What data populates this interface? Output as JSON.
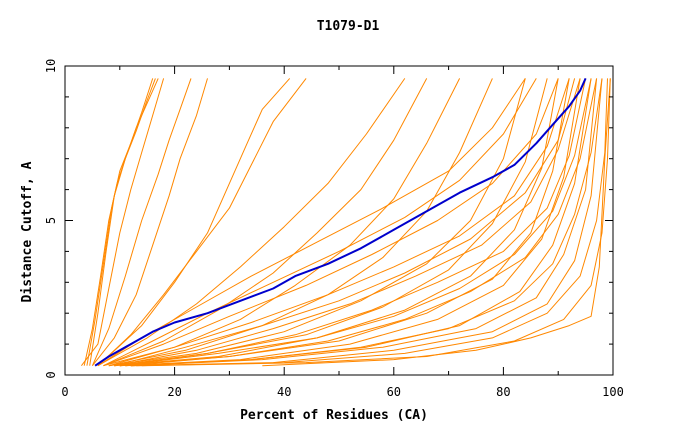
{
  "chart_data": {
    "type": "line",
    "title": "T1079-D1",
    "xlabel": "Percent of Residues (CA)",
    "ylabel": "Distance Cutoff, A",
    "xlim": [
      0,
      100
    ],
    "ylim": [
      0,
      10
    ],
    "x_ticks": [
      "0",
      "20",
      "40",
      "60",
      "80",
      "100"
    ],
    "y_ticks": [
      "0",
      "5",
      "10"
    ],
    "grid": false,
    "highlight_color": "#0000cc",
    "others_color": "#ff8800",
    "series": [
      {
        "highlight": true,
        "x": [
          5.5,
          8,
          12,
          16,
          20,
          26,
          32,
          38,
          42,
          48,
          54,
          60,
          66,
          72,
          78,
          82,
          86,
          89,
          92,
          94,
          95
        ],
        "y": [
          0.3,
          0.6,
          1.0,
          1.4,
          1.7,
          2.0,
          2.4,
          2.8,
          3.2,
          3.6,
          4.1,
          4.7,
          5.3,
          5.9,
          6.4,
          6.8,
          7.5,
          8.1,
          8.7,
          9.2,
          9.6
        ]
      },
      {
        "x": [
          3.5,
          5,
          6.5,
          8,
          9.5,
          11,
          13,
          15,
          17
        ],
        "y": [
          0.3,
          1.5,
          3.2,
          5.0,
          6.2,
          7.0,
          8.0,
          8.8,
          9.6
        ]
      },
      {
        "x": [
          4,
          5.5,
          7,
          8.5,
          10,
          12,
          14,
          16
        ],
        "y": [
          0.3,
          1.8,
          3.6,
          5.4,
          6.6,
          7.5,
          8.5,
          9.6
        ]
      },
      {
        "x": [
          4.5,
          6,
          7.5,
          9,
          11,
          13,
          15,
          16.5
        ],
        "y": [
          0.3,
          2.0,
          4.0,
          5.8,
          7.0,
          7.9,
          8.9,
          9.6
        ]
      },
      {
        "x": [
          3,
          6,
          8,
          10,
          12,
          14,
          16,
          18
        ],
        "y": [
          0.3,
          1.0,
          2.8,
          4.6,
          6.0,
          7.2,
          8.4,
          9.6
        ]
      },
      {
        "x": [
          5,
          8,
          11,
          14,
          17,
          19,
          21,
          23
        ],
        "y": [
          0.3,
          1.5,
          3.2,
          5.0,
          6.5,
          7.6,
          8.6,
          9.6
        ]
      },
      {
        "x": [
          5,
          9,
          13,
          16,
          19,
          21,
          24,
          26
        ],
        "y": [
          0.3,
          1.2,
          2.6,
          4.2,
          5.8,
          7.0,
          8.4,
          9.6
        ]
      },
      {
        "x": [
          6,
          12,
          18,
          24,
          30,
          34,
          38,
          44
        ],
        "y": [
          0.3,
          1.3,
          2.6,
          4.0,
          5.4,
          6.8,
          8.2,
          9.6
        ]
      },
      {
        "x": [
          6,
          14,
          20,
          26,
          30,
          33,
          36,
          41
        ],
        "y": [
          0.3,
          1.6,
          3.0,
          4.6,
          6.2,
          7.4,
          8.6,
          9.6
        ]
      },
      {
        "x": [
          6,
          15,
          24,
          32,
          40,
          48,
          55,
          62
        ],
        "y": [
          0.3,
          1.2,
          2.3,
          3.5,
          4.8,
          6.2,
          7.8,
          9.6
        ]
      },
      {
        "x": [
          7,
          18,
          28,
          38,
          46,
          54,
          60,
          66
        ],
        "y": [
          0.3,
          1.1,
          2.1,
          3.3,
          4.6,
          6.0,
          7.6,
          9.6
        ]
      },
      {
        "x": [
          7,
          20,
          32,
          42,
          52,
          60,
          66,
          72
        ],
        "y": [
          0.3,
          0.9,
          1.8,
          2.9,
          4.2,
          5.7,
          7.5,
          9.6
        ]
      },
      {
        "x": [
          8,
          22,
          36,
          48,
          58,
          66,
          72,
          78
        ],
        "y": [
          0.3,
          0.8,
          1.6,
          2.6,
          3.8,
          5.3,
          7.2,
          9.6
        ]
      },
      {
        "x": [
          8,
          24,
          40,
          54,
          66,
          74,
          80,
          84
        ],
        "y": [
          0.3,
          0.7,
          1.4,
          2.4,
          3.6,
          5.0,
          7.0,
          9.6
        ]
      },
      {
        "x": [
          9,
          26,
          44,
          58,
          70,
          78,
          84,
          88
        ],
        "y": [
          0.3,
          0.7,
          1.3,
          2.2,
          3.4,
          4.9,
          6.9,
          9.6
        ]
      },
      {
        "x": [
          9,
          28,
          46,
          62,
          74,
          82,
          87,
          90
        ],
        "y": [
          0.3,
          0.6,
          1.2,
          2.1,
          3.2,
          4.7,
          6.7,
          9.6
        ]
      },
      {
        "x": [
          10,
          30,
          50,
          66,
          78,
          85,
          89,
          92
        ],
        "y": [
          0.3,
          0.6,
          1.1,
          2.0,
          3.1,
          4.6,
          6.6,
          9.6
        ]
      },
      {
        "x": [
          10,
          32,
          52,
          68,
          80,
          87,
          91,
          94
        ],
        "y": [
          0.3,
          0.5,
          1.0,
          1.8,
          2.9,
          4.4,
          6.4,
          9.6
        ]
      },
      {
        "x": [
          11,
          34,
          55,
          72,
          83,
          89,
          93,
          96
        ],
        "y": [
          0.3,
          0.5,
          0.9,
          1.6,
          2.7,
          4.2,
          6.2,
          9.6
        ]
      },
      {
        "x": [
          12,
          36,
          58,
          75,
          86,
          91,
          95,
          97
        ],
        "y": [
          0.3,
          0.5,
          0.9,
          1.5,
          2.5,
          3.9,
          6.0,
          9.6
        ]
      },
      {
        "x": [
          12,
          38,
          60,
          78,
          88,
          93,
          96,
          98
        ],
        "y": [
          0.3,
          0.4,
          0.8,
          1.4,
          2.3,
          3.7,
          5.8,
          9.6
        ]
      },
      {
        "x": [
          8,
          20,
          34,
          48,
          60,
          72,
          82,
          88,
          92
        ],
        "y": [
          0.3,
          0.9,
          1.7,
          2.6,
          3.5,
          4.5,
          5.8,
          7.4,
          9.6
        ]
      },
      {
        "x": [
          9,
          24,
          38,
          52,
          64,
          76,
          85,
          90,
          94
        ],
        "y": [
          0.3,
          0.8,
          1.5,
          2.3,
          3.2,
          4.2,
          5.6,
          7.3,
          9.6
        ]
      },
      {
        "x": [
          10,
          26,
          42,
          56,
          68,
          80,
          88,
          92,
          95
        ],
        "y": [
          0.3,
          0.7,
          1.3,
          2.1,
          3.0,
          4.0,
          5.4,
          7.1,
          9.6
        ]
      },
      {
        "x": [
          7,
          18,
          30,
          44,
          56,
          68,
          78,
          86,
          90
        ],
        "y": [
          0.3,
          1.0,
          1.9,
          2.9,
          3.9,
          5.0,
          6.2,
          7.8,
          9.6
        ]
      },
      {
        "x": [
          11,
          30,
          48,
          62,
          74,
          84,
          90,
          94,
          97
        ],
        "y": [
          0.3,
          0.6,
          1.1,
          1.8,
          2.7,
          3.8,
          5.2,
          7.0,
          9.6
        ]
      },
      {
        "x": [
          13,
          40,
          62,
          78,
          88,
          94,
          97,
          98.5,
          99
        ],
        "y": [
          0.3,
          0.4,
          0.7,
          1.2,
          2.0,
          3.2,
          5.0,
          7.2,
          9.6
        ]
      },
      {
        "x": [
          14,
          44,
          66,
          82,
          91,
          96,
          98,
          99,
          99.5
        ],
        "y": [
          0.3,
          0.4,
          0.6,
          1.1,
          1.8,
          2.9,
          4.6,
          7.0,
          9.6
        ]
      },
      {
        "x": [
          36,
          60,
          75,
          85,
          92,
          96,
          97.5,
          98.5,
          99.5
        ],
        "y": [
          0.3,
          0.5,
          0.8,
          1.2,
          1.6,
          1.9,
          3.5,
          7.0,
          9.6
        ]
      },
      {
        "x": [
          9,
          22,
          36,
          50,
          62,
          74,
          84,
          90,
          93
        ],
        "y": [
          0.3,
          0.9,
          1.6,
          2.4,
          3.3,
          4.4,
          5.9,
          7.6,
          9.6
        ]
      },
      {
        "x": [
          10,
          28,
          46,
          60,
          72,
          82,
          89,
          93,
          96
        ],
        "y": [
          0.3,
          0.7,
          1.2,
          1.9,
          2.8,
          3.9,
          5.3,
          7.1,
          9.6
        ]
      },
      {
        "x": [
          12,
          34,
          54,
          70,
          82,
          89,
          93,
          96,
          98
        ],
        "y": [
          0.3,
          0.5,
          0.9,
          1.5,
          2.4,
          3.6,
          5.2,
          7.2,
          9.6
        ]
      },
      {
        "x": [
          7,
          16,
          26,
          38,
          50,
          62,
          72,
          80,
          86
        ],
        "y": [
          0.3,
          1.1,
          2.0,
          3.0,
          4.0,
          5.1,
          6.3,
          7.8,
          9.6
        ]
      },
      {
        "x": [
          6,
          14,
          24,
          34,
          46,
          58,
          70,
          78,
          84
        ],
        "y": [
          0.3,
          1.2,
          2.2,
          3.2,
          4.3,
          5.4,
          6.6,
          8.0,
          9.6
        ]
      }
    ]
  }
}
